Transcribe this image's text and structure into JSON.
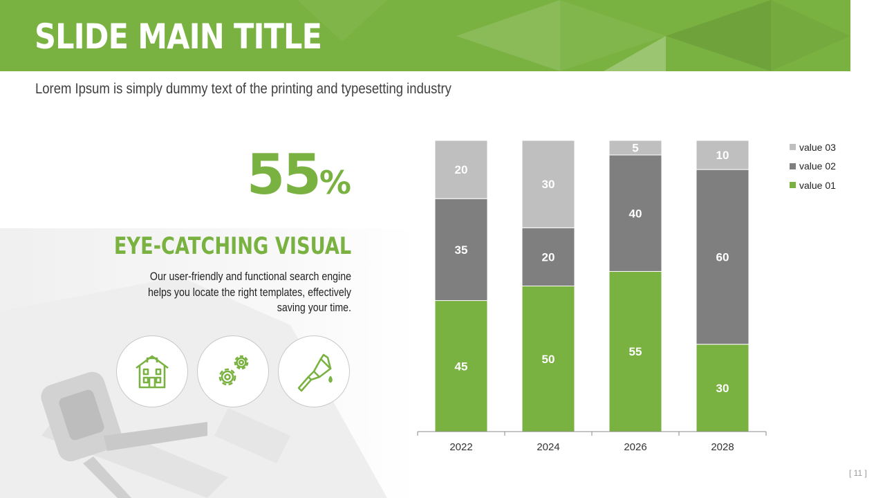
{
  "slide": {
    "title": "SLIDE MAIN TITLE",
    "subtitle": "Lorem Ipsum is simply dummy text of the printing and typesetting industry",
    "page_number": "[ 11 ]"
  },
  "highlight": {
    "value": "55",
    "unit": "%",
    "heading": "EYE-CATCHING VISUAL",
    "body": "Our user-friendly and functional search engine helps you locate the right templates, effectively saving your time."
  },
  "icons": [
    "house-icon",
    "gears-icon",
    "paint-brush-icon"
  ],
  "colors": {
    "accent": "#7ab241",
    "value02": "#7f7f7f",
    "value03": "#bfbfbf"
  },
  "chart_data": {
    "type": "bar",
    "stacked": true,
    "categories": [
      "2022",
      "2024",
      "2026",
      "2028"
    ],
    "series": [
      {
        "name": "value 01",
        "color": "#7ab241",
        "values": [
          45,
          50,
          55,
          30
        ]
      },
      {
        "name": "value 02",
        "color": "#7f7f7f",
        "values": [
          35,
          20,
          40,
          60
        ]
      },
      {
        "name": "value 03",
        "color": "#bfbfbf",
        "values": [
          20,
          30,
          5,
          10
        ]
      }
    ],
    "ylim": [
      0,
      100
    ],
    "legend": [
      "value 03",
      "value 02",
      "value 01"
    ],
    "legend_position": "top-right",
    "grid": false
  }
}
